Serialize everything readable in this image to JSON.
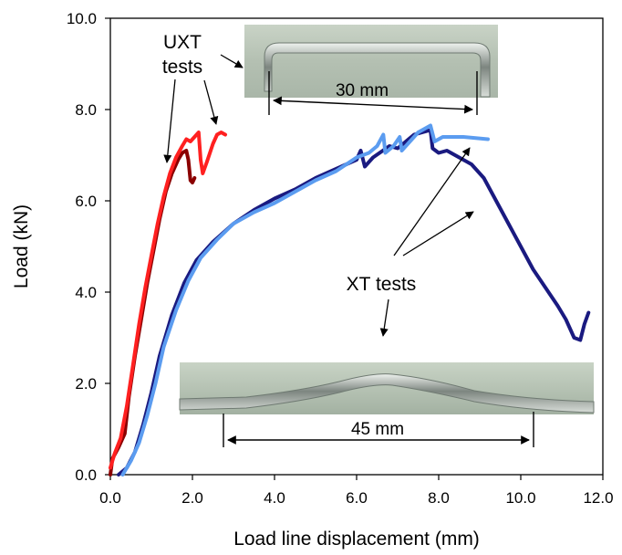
{
  "chart_data": {
    "type": "line",
    "title": "",
    "xlabel": "Load line displacement (mm)",
    "ylabel": "Load (kN)",
    "xlim": [
      0,
      12
    ],
    "ylim": [
      0,
      10
    ],
    "x_ticks": [
      "0.0",
      "2.0",
      "4.0",
      "6.0",
      "8.0",
      "10.0",
      "12.0"
    ],
    "y_ticks": [
      "0.0",
      "2.0",
      "4.0",
      "6.0",
      "8.0",
      "10.0"
    ],
    "grid": false,
    "legend": "none",
    "series": [
      {
        "color": "#8b0000",
        "points": [
          [
            0.0,
            0.0
          ],
          [
            0.05,
            0.35
          ],
          [
            0.2,
            0.6
          ],
          [
            0.35,
            0.9
          ],
          [
            0.45,
            1.7
          ],
          [
            0.6,
            2.6
          ],
          [
            0.75,
            3.4
          ],
          [
            0.9,
            4.2
          ],
          [
            1.05,
            4.9
          ],
          [
            1.2,
            5.6
          ],
          [
            1.35,
            6.2
          ],
          [
            1.5,
            6.6
          ],
          [
            1.65,
            6.9
          ],
          [
            1.75,
            7.05
          ],
          [
            1.85,
            7.1
          ],
          [
            1.9,
            6.9
          ],
          [
            1.95,
            6.45
          ],
          [
            2.0,
            6.4
          ],
          [
            2.05,
            6.5
          ]
        ]
      },
      {
        "color": "#ff2020",
        "points": [
          [
            0.0,
            0.15
          ],
          [
            0.1,
            0.45
          ],
          [
            0.25,
            0.8
          ],
          [
            0.4,
            1.5
          ],
          [
            0.55,
            2.4
          ],
          [
            0.7,
            3.3
          ],
          [
            0.85,
            4.1
          ],
          [
            1.0,
            4.8
          ],
          [
            1.15,
            5.5
          ],
          [
            1.3,
            6.1
          ],
          [
            1.45,
            6.6
          ],
          [
            1.6,
            6.95
          ],
          [
            1.75,
            7.2
          ],
          [
            1.85,
            7.35
          ],
          [
            1.95,
            7.3
          ],
          [
            2.05,
            7.4
          ],
          [
            2.15,
            7.5
          ],
          [
            2.2,
            6.9
          ],
          [
            2.25,
            6.6
          ],
          [
            2.35,
            6.85
          ],
          [
            2.5,
            7.25
          ],
          [
            2.6,
            7.45
          ],
          [
            2.7,
            7.5
          ],
          [
            2.8,
            7.45
          ]
        ]
      },
      {
        "color": "#1a1a80",
        "points": [
          [
            0.2,
            0.0
          ],
          [
            0.4,
            0.15
          ],
          [
            0.6,
            0.5
          ],
          [
            0.8,
            1.1
          ],
          [
            1.0,
            1.8
          ],
          [
            1.2,
            2.6
          ],
          [
            1.5,
            3.5
          ],
          [
            1.8,
            4.2
          ],
          [
            2.1,
            4.7
          ],
          [
            2.5,
            5.1
          ],
          [
            3.0,
            5.5
          ],
          [
            3.5,
            5.8
          ],
          [
            4.0,
            6.05
          ],
          [
            4.5,
            6.25
          ],
          [
            5.0,
            6.5
          ],
          [
            5.5,
            6.7
          ],
          [
            6.0,
            6.9
          ],
          [
            6.1,
            7.1
          ],
          [
            6.2,
            6.75
          ],
          [
            6.4,
            6.95
          ],
          [
            6.8,
            7.2
          ],
          [
            7.0,
            7.15
          ],
          [
            7.2,
            7.3
          ],
          [
            7.4,
            7.45
          ],
          [
            7.6,
            7.5
          ],
          [
            7.8,
            7.55
          ],
          [
            7.85,
            7.15
          ],
          [
            8.0,
            7.05
          ],
          [
            8.2,
            7.1
          ],
          [
            8.5,
            6.95
          ],
          [
            8.8,
            6.8
          ],
          [
            9.1,
            6.5
          ],
          [
            9.4,
            6.0
          ],
          [
            9.7,
            5.5
          ],
          [
            10.0,
            5.0
          ],
          [
            10.3,
            4.5
          ],
          [
            10.6,
            4.1
          ],
          [
            10.9,
            3.7
          ],
          [
            11.1,
            3.4
          ],
          [
            11.3,
            3.0
          ],
          [
            11.45,
            2.95
          ],
          [
            11.55,
            3.3
          ],
          [
            11.65,
            3.55
          ]
        ]
      },
      {
        "color": "#5b9cf0",
        "points": [
          [
            0.3,
            0.0
          ],
          [
            0.5,
            0.3
          ],
          [
            0.7,
            0.7
          ],
          [
            0.9,
            1.3
          ],
          [
            1.1,
            2.0
          ],
          [
            1.3,
            2.8
          ],
          [
            1.6,
            3.6
          ],
          [
            1.9,
            4.25
          ],
          [
            2.2,
            4.75
          ],
          [
            2.6,
            5.15
          ],
          [
            3.0,
            5.5
          ],
          [
            3.5,
            5.75
          ],
          [
            4.0,
            5.95
          ],
          [
            4.5,
            6.2
          ],
          [
            5.0,
            6.45
          ],
          [
            5.5,
            6.65
          ],
          [
            6.0,
            6.95
          ],
          [
            6.3,
            7.05
          ],
          [
            6.5,
            7.2
          ],
          [
            6.65,
            7.45
          ],
          [
            6.7,
            7.05
          ],
          [
            6.9,
            7.2
          ],
          [
            7.05,
            7.4
          ],
          [
            7.1,
            7.1
          ],
          [
            7.3,
            7.3
          ],
          [
            7.5,
            7.5
          ],
          [
            7.7,
            7.6
          ],
          [
            7.8,
            7.65
          ],
          [
            7.9,
            7.3
          ],
          [
            8.1,
            7.4
          ],
          [
            8.6,
            7.4
          ],
          [
            9.2,
            7.35
          ]
        ]
      }
    ],
    "annotations": {
      "uxt_line1": "UXT",
      "uxt_line2": "tests",
      "xt": "XT tests",
      "dim_top": "30 mm",
      "dim_bottom": "45 mm"
    }
  }
}
